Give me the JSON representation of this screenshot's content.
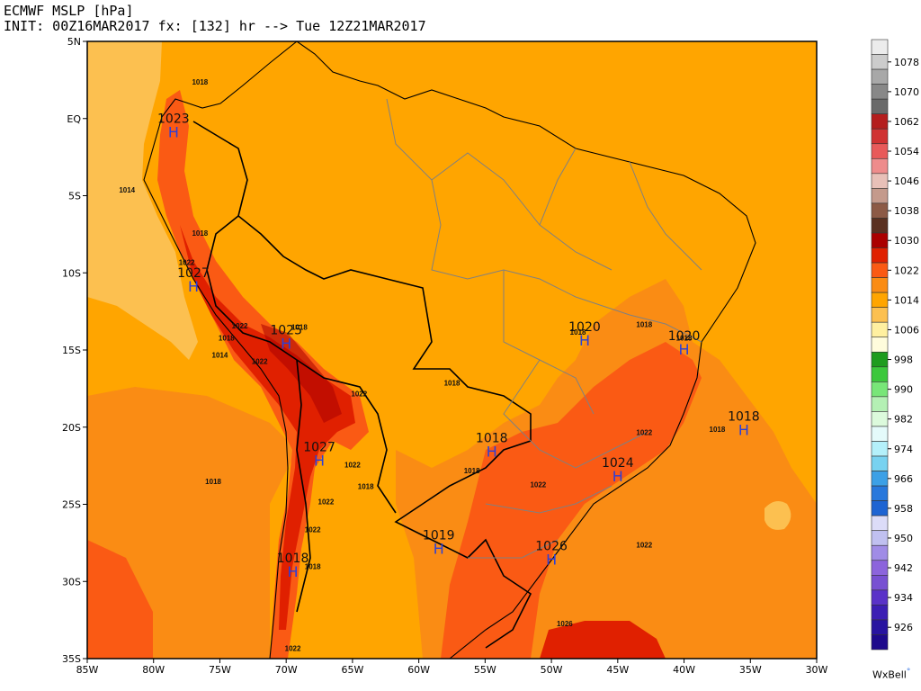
{
  "header": {
    "line1": "ECMWF MSLP [hPa]",
    "line2": "INIT: 00Z16MAR2017 fx: [132] hr --> Tue 12Z21MAR2017"
  },
  "brand": {
    "name": "WxBell",
    "mark": "°"
  },
  "axes": {
    "x_ticks": [
      "85W",
      "80W",
      "75W",
      "70W",
      "65W",
      "60W",
      "55W",
      "50W",
      "45W",
      "40W",
      "35W",
      "30W"
    ],
    "y_ticks": [
      "5N",
      "EQ",
      "5S",
      "10S",
      "15S",
      "20S",
      "25S",
      "30S",
      "35S"
    ]
  },
  "colorbar": {
    "levels": [
      {
        "label": "",
        "color": "#ececec"
      },
      {
        "label": "1078",
        "color": "#cccccc"
      },
      {
        "label": "",
        "color": "#a8a8a8"
      },
      {
        "label": "1070",
        "color": "#888888"
      },
      {
        "label": "",
        "color": "#6a6a6a"
      },
      {
        "label": "1062",
        "color": "#b41e1e"
      },
      {
        "label": "",
        "color": "#d03232"
      },
      {
        "label": "1054",
        "color": "#e85a5a"
      },
      {
        "label": "",
        "color": "#ee8c8c"
      },
      {
        "label": "1046",
        "color": "#e8c0b8"
      },
      {
        "label": "",
        "color": "#c49a8c"
      },
      {
        "label": "1038",
        "color": "#8c5a46"
      },
      {
        "label": "",
        "color": "#5a3020"
      },
      {
        "label": "1030",
        "color": "#aa0000"
      },
      {
        "label": "",
        "color": "#e02000"
      },
      {
        "label": "1022",
        "color": "#fa5a14"
      },
      {
        "label": "",
        "color": "#fa8c14"
      },
      {
        "label": "1014",
        "color": "#ffa500"
      },
      {
        "label": "",
        "color": "#fcc050"
      },
      {
        "label": "1006",
        "color": "#fff0a0"
      },
      {
        "label": "",
        "color": "#fffcdc"
      },
      {
        "label": "998",
        "color": "#1e9c1e"
      },
      {
        "label": "",
        "color": "#3cc83c"
      },
      {
        "label": "990",
        "color": "#78e678"
      },
      {
        "label": "",
        "color": "#b4f0b4"
      },
      {
        "label": "982",
        "color": "#dcfadc"
      },
      {
        "label": "",
        "color": "#e4fafa"
      },
      {
        "label": "974",
        "color": "#b4f0fa"
      },
      {
        "label": "",
        "color": "#78d2f0"
      },
      {
        "label": "966",
        "color": "#3ca0e6"
      },
      {
        "label": "",
        "color": "#2878dc"
      },
      {
        "label": "958",
        "color": "#1e64d2"
      },
      {
        "label": "",
        "color": "#dcdcf8"
      },
      {
        "label": "950",
        "color": "#c0c0f0"
      },
      {
        "label": "",
        "color": "#a08ce6"
      },
      {
        "label": "942",
        "color": "#8c64dc"
      },
      {
        "label": "",
        "color": "#7850d2"
      },
      {
        "label": "934",
        "color": "#5a32c8"
      },
      {
        "label": "",
        "color": "#3c1eb4"
      },
      {
        "label": "926",
        "color": "#2814a0"
      },
      {
        "label": "",
        "color": "#1e0a8c"
      }
    ]
  },
  "highs": [
    {
      "value": "1023",
      "lon": -78.5,
      "lat": -0.5
    },
    {
      "value": "1027",
      "lon": -77,
      "lat": -10.5
    },
    {
      "value": "1025",
      "lon": -70,
      "lat": -14.2
    },
    {
      "value": "1027",
      "lon": -67.5,
      "lat": -21.8
    },
    {
      "value": "1018",
      "lon": -69.5,
      "lat": -29.0
    },
    {
      "value": "1019",
      "lon": -58.5,
      "lat": -27.5
    },
    {
      "value": "1018",
      "lon": -54.5,
      "lat": -21.2
    },
    {
      "value": "1026",
      "lon": -50,
      "lat": -28.2
    },
    {
      "value": "1024",
      "lon": -45,
      "lat": -22.8
    },
    {
      "value": "1020",
      "lon": -47.5,
      "lat": -14.0
    },
    {
      "value": "1020",
      "lon": -40,
      "lat": -14.6
    },
    {
      "value": "1018",
      "lon": -35.5,
      "lat": -19.8
    }
  ],
  "contour_labels": [
    {
      "text": "1018",
      "lon": -76.5,
      "lat": 2.2
    },
    {
      "text": "1014",
      "lon": -82,
      "lat": -4.8
    },
    {
      "text": "1018",
      "lon": -76.5,
      "lat": -7.6
    },
    {
      "text": "1022",
      "lon": -77.5,
      "lat": -9.5
    },
    {
      "text": "1022",
      "lon": -73.5,
      "lat": -13.6
    },
    {
      "text": "1018",
      "lon": -74.5,
      "lat": -14.4
    },
    {
      "text": "1014",
      "lon": -75,
      "lat": -15.5
    },
    {
      "text": "1022",
      "lon": -72,
      "lat": -15.9
    },
    {
      "text": "1018",
      "lon": -69,
      "lat": -13.7
    },
    {
      "text": "1022",
      "lon": -64.5,
      "lat": -18.0
    },
    {
      "text": "1018",
      "lon": -57.5,
      "lat": -17.3
    },
    {
      "text": "1022",
      "lon": -65,
      "lat": -22.6
    },
    {
      "text": "1018",
      "lon": -64,
      "lat": -24.0
    },
    {
      "text": "1018",
      "lon": -75.5,
      "lat": -23.7
    },
    {
      "text": "1022",
      "lon": -68,
      "lat": -26.8
    },
    {
      "text": "1022",
      "lon": -67,
      "lat": -25.0
    },
    {
      "text": "1018",
      "lon": -68,
      "lat": -29.2
    },
    {
      "text": "1022",
      "lon": -69.5,
      "lat": -34.5
    },
    {
      "text": "1018",
      "lon": -56,
      "lat": -23.0
    },
    {
      "text": "1022",
      "lon": -51,
      "lat": -23.9
    },
    {
      "text": "1018",
      "lon": -48,
      "lat": -14.0
    },
    {
      "text": "1018",
      "lon": -43,
      "lat": -13.5
    },
    {
      "text": "1018",
      "lon": -40,
      "lat": -14.4
    },
    {
      "text": "1022",
      "lon": -43,
      "lat": -20.5
    },
    {
      "text": "1018",
      "lon": -37.5,
      "lat": -20.3
    },
    {
      "text": "1022",
      "lon": -43,
      "lat": -27.8
    },
    {
      "text": "1026",
      "lon": -49,
      "lat": -32.9
    }
  ]
}
